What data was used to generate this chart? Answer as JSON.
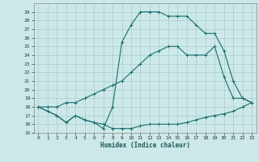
{
  "title": "",
  "xlabel": "Humidex (Indice chaleur)",
  "bg_color": "#cce8e8",
  "grid_color": "#aacccc",
  "line_color": "#1a6e6e",
  "ylim": [
    15,
    30
  ],
  "xlim": [
    -0.5,
    23.5
  ],
  "yticks": [
    15,
    16,
    17,
    18,
    19,
    20,
    21,
    22,
    23,
    24,
    25,
    26,
    27,
    28,
    29
  ],
  "xticks": [
    0,
    1,
    2,
    3,
    4,
    5,
    6,
    7,
    8,
    9,
    10,
    11,
    12,
    13,
    14,
    15,
    16,
    17,
    18,
    19,
    20,
    21,
    22,
    23
  ],
  "line1_x": [
    0,
    1,
    2,
    3,
    4,
    5,
    6,
    7,
    8,
    9,
    10,
    11,
    12,
    13,
    14,
    15,
    16,
    17,
    18,
    19,
    20,
    21,
    22,
    23
  ],
  "line1_y": [
    18.0,
    17.5,
    17.0,
    16.2,
    17.0,
    16.5,
    16.2,
    16.0,
    15.5,
    15.5,
    15.5,
    15.8,
    16.0,
    16.0,
    16.0,
    16.0,
    16.2,
    16.5,
    16.8,
    17.0,
    17.2,
    17.5,
    18.0,
    18.5
  ],
  "line2_x": [
    0,
    1,
    2,
    3,
    4,
    5,
    6,
    7,
    8,
    9,
    10,
    11,
    12,
    13,
    14,
    15,
    16,
    17,
    18,
    19,
    20,
    21,
    22,
    23
  ],
  "line2_y": [
    18.0,
    18.0,
    18.0,
    18.5,
    18.5,
    19.0,
    19.5,
    20.0,
    20.5,
    21.0,
    22.0,
    23.0,
    24.0,
    24.5,
    25.0,
    25.0,
    24.0,
    24.0,
    24.0,
    25.0,
    21.5,
    19.0,
    19.0,
    18.5
  ],
  "line3_x": [
    0,
    1,
    2,
    3,
    4,
    5,
    6,
    7,
    8,
    9,
    10,
    11,
    12,
    13,
    14,
    15,
    16,
    17,
    18,
    19,
    20,
    21,
    22,
    23
  ],
  "line3_y": [
    18.0,
    17.5,
    17.0,
    16.2,
    17.0,
    16.5,
    16.2,
    15.5,
    18.0,
    25.5,
    27.5,
    29.0,
    29.0,
    29.0,
    28.5,
    28.5,
    28.5,
    27.5,
    26.5,
    26.5,
    24.5,
    21.0,
    19.0,
    18.5
  ]
}
